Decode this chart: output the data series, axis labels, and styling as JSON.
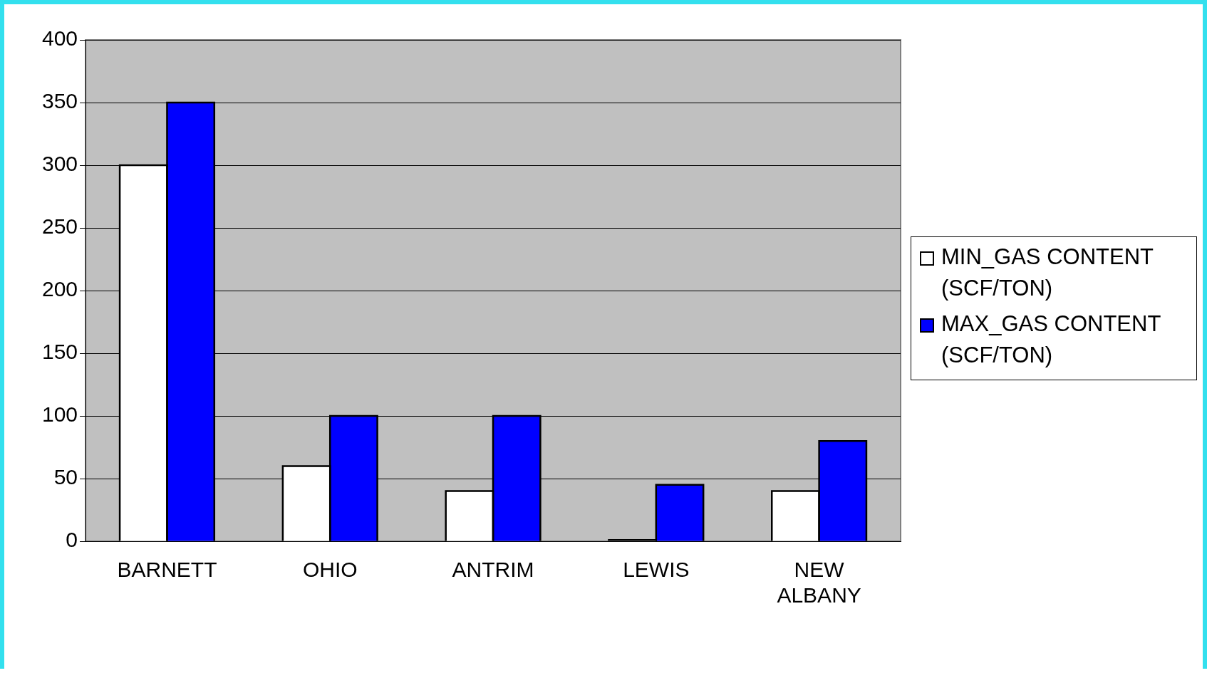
{
  "chart_data": {
    "type": "bar",
    "categories": [
      "BARNETT",
      "OHIO",
      "ANTRIM",
      "LEWIS",
      "NEW ALBANY"
    ],
    "series": [
      {
        "name": "MIN_GAS CONTENT (SCF/TON)",
        "color": "#ffffff",
        "values": [
          300,
          60,
          40,
          1,
          40
        ]
      },
      {
        "name": "MAX_GAS CONTENT (SCF/TON)",
        "color": "#0000ff",
        "values": [
          350,
          100,
          100,
          45,
          80
        ]
      }
    ],
    "ylim": [
      0,
      400
    ],
    "yticks": [
      0,
      50,
      100,
      150,
      200,
      250,
      300,
      350,
      400
    ],
    "grid": "y",
    "legend": "right"
  }
}
